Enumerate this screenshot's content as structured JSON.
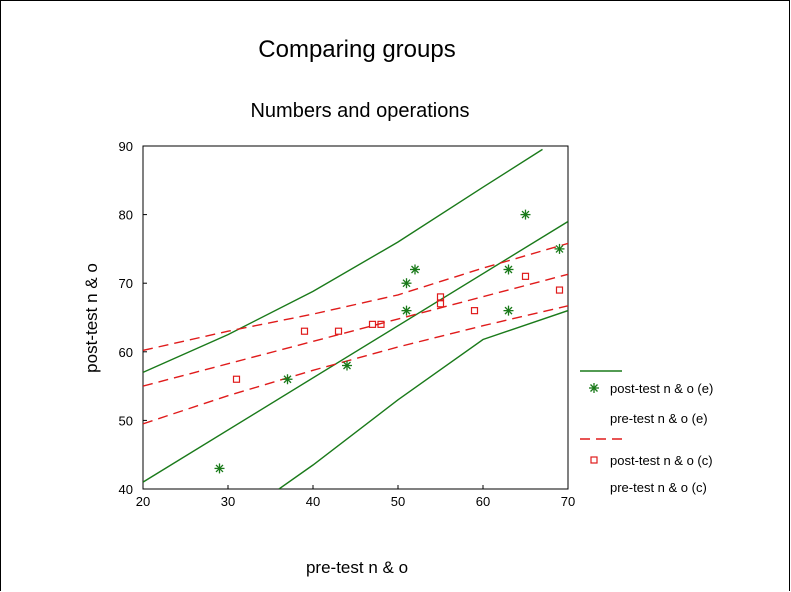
{
  "chart_data": {
    "type": "scatter",
    "title": "Comparing groups",
    "subtitle": "Numbers and operations",
    "xlabel": "pre-test n & o",
    "ylabel": "post-test n & o",
    "xlim": [
      20,
      70
    ],
    "ylim": [
      40,
      90
    ],
    "xticks": [
      "20",
      "30",
      "40",
      "50",
      "60",
      "70"
    ],
    "yticks": [
      "40",
      "50",
      "60",
      "70",
      "80",
      "90"
    ],
    "grid": false,
    "legend_position": "right",
    "series": [
      {
        "name": "post-test n & o (e)",
        "marker": "asterisk",
        "color": "#1a7a1a",
        "points": [
          [
            29,
            43
          ],
          [
            37,
            56
          ],
          [
            44,
            58
          ],
          [
            51,
            70
          ],
          [
            51,
            66
          ],
          [
            52,
            72
          ],
          [
            63,
            72
          ],
          [
            63,
            66
          ],
          [
            65,
            80
          ],
          [
            69,
            75
          ]
        ]
      },
      {
        "name": "post-test n & o (c)",
        "marker": "square",
        "color": "#e01b1b",
        "points": [
          [
            31,
            56
          ],
          [
            39,
            63
          ],
          [
            43,
            63
          ],
          [
            47,
            64
          ],
          [
            48,
            64
          ],
          [
            55,
            68
          ],
          [
            55,
            67
          ],
          [
            59,
            66
          ],
          [
            65,
            71
          ],
          [
            69,
            69
          ]
        ]
      }
    ],
    "fit_lines": [
      {
        "name": "pre-test n & o (e)",
        "color": "#1a7a1a",
        "style": "solid",
        "fit": [
          [
            20,
            41.0
          ],
          [
            70,
            79.0
          ]
        ],
        "upper": [
          [
            20,
            57.0
          ],
          [
            30,
            62.5
          ],
          [
            40,
            68.8
          ],
          [
            50,
            76.0
          ],
          [
            60,
            84.0
          ],
          [
            67,
            89.5
          ]
        ],
        "lower": [
          [
            36,
            40.0
          ],
          [
            40,
            43.5
          ],
          [
            50,
            53.0
          ],
          [
            60,
            61.8
          ],
          [
            70,
            66.0
          ]
        ]
      },
      {
        "name": "pre-test n & o (c)",
        "color": "#e01b1b",
        "style": "dashed",
        "fit": [
          [
            20,
            55.0
          ],
          [
            70,
            71.3
          ]
        ],
        "upper": [
          [
            20,
            60.2
          ],
          [
            30,
            63.0
          ],
          [
            40,
            65.5
          ],
          [
            50,
            68.3
          ],
          [
            60,
            72.2
          ],
          [
            70,
            75.8
          ]
        ],
        "lower": [
          [
            20,
            49.5
          ],
          [
            30,
            53.6
          ],
          [
            40,
            57.3
          ],
          [
            50,
            60.7
          ],
          [
            60,
            63.8
          ],
          [
            70,
            66.7
          ]
        ]
      }
    ]
  }
}
